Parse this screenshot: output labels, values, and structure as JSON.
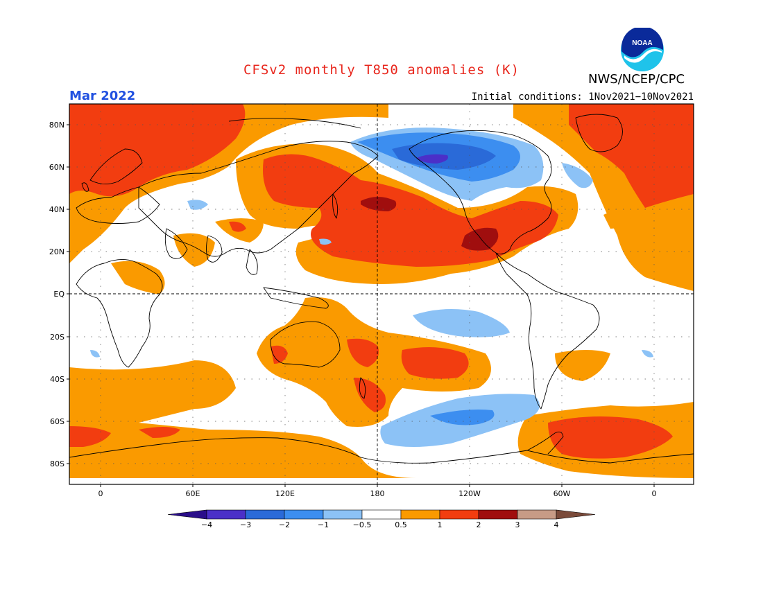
{
  "header": {
    "title": "CFSv2 monthly T850 anomalies (K)",
    "agency": "NWS/NCEP/CPC",
    "logo_text": "NOAA",
    "forecast_period": "Mar 2022",
    "initial_conditions": "Initial conditions: 1Nov2021−10Nov2021"
  },
  "colors": {
    "title": "#e8261c",
    "period": "#2050e0",
    "c_m4": "#2a0e8a",
    "c_m3": "#4b2fc8",
    "c_m2": "#2a6ad8",
    "c_m1": "#3c8ef0",
    "c_m05": "#8cc2f6",
    "c_0": "#ffffff",
    "c_05": "#fa9a00",
    "c_1": "#f23d10",
    "c_2": "#a00e0e",
    "c_3": "#c79b86",
    "c_4": "#7a4a3a"
  },
  "chart_data": {
    "type": "heatmap",
    "variable": "T850 anomalies (K)",
    "lat_labels": [
      "80N",
      "60N",
      "40N",
      "20N",
      "EQ",
      "20S",
      "40S",
      "60S",
      "80S"
    ],
    "lon_labels": [
      "0",
      "60E",
      "120E",
      "180",
      "120W",
      "60W",
      "0"
    ],
    "colorbar": {
      "ticks": [
        "−4",
        "−3",
        "−2",
        "−1",
        "−0.5",
        "0.5",
        "1",
        "2",
        "3",
        "4"
      ],
      "bins": [
        {
          "range": "< -4",
          "color": "#2a0e8a"
        },
        {
          "range": "-4 to -3",
          "color": "#4b2fc8"
        },
        {
          "range": "-3 to -2",
          "color": "#2a6ad8"
        },
        {
          "range": "-2 to -1",
          "color": "#3c8ef0"
        },
        {
          "range": "-1 to -0.5",
          "color": "#8cc2f6"
        },
        {
          "range": "-0.5 to 0.5",
          "color": "#ffffff"
        },
        {
          "range": "0.5 to 1",
          "color": "#fa9a00"
        },
        {
          "range": "1 to 2",
          "color": "#f23d10"
        },
        {
          "range": "2 to 3",
          "color": "#a00e0e"
        },
        {
          "range": "3 to 4",
          "color": "#c79b86"
        },
        {
          "range": "> 4",
          "color": "#7a4a3a"
        }
      ]
    }
  }
}
